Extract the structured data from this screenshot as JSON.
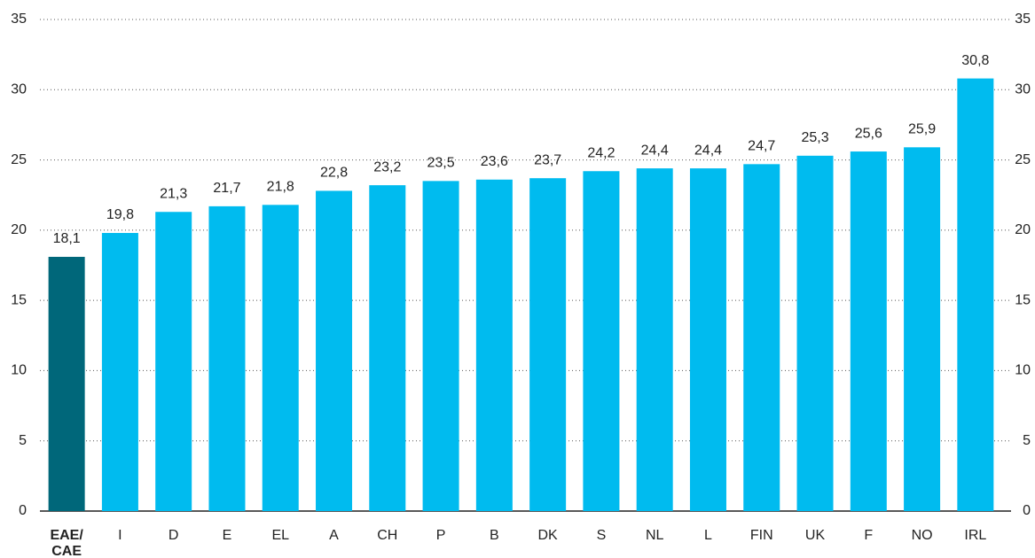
{
  "chart_data": {
    "type": "bar",
    "categories": [
      "EAE/ CAE",
      "I",
      "D",
      "E",
      "EL",
      "A",
      "CH",
      "P",
      "B",
      "DK",
      "S",
      "NL",
      "L",
      "FIN",
      "UK",
      "F",
      "NO",
      "IRL"
    ],
    "values": [
      18.1,
      19.8,
      21.3,
      21.7,
      21.8,
      22.8,
      23.2,
      23.5,
      23.6,
      23.7,
      24.2,
      24.4,
      24.4,
      24.7,
      25.3,
      25.6,
      25.9,
      30.8
    ],
    "value_labels": [
      "18,1",
      "19,8",
      "21,3",
      "21,7",
      "21,8",
      "22,8",
      "23,2",
      "23,5",
      "23,6",
      "23,7",
      "24,2",
      "24,4",
      "24,4",
      "24,7",
      "25,3",
      "25,6",
      "25,9",
      "30,8"
    ],
    "colors": [
      "#00677a",
      "#00bbef",
      "#00bbef",
      "#00bbef",
      "#00bbef",
      "#00bbef",
      "#00bbef",
      "#00bbef",
      "#00bbef",
      "#00bbef",
      "#00bbef",
      "#00bbef",
      "#00bbef",
      "#00bbef",
      "#00bbef",
      "#00bbef",
      "#00bbef",
      "#00bbef"
    ],
    "ylim": [
      0,
      35
    ],
    "yticks": [
      0,
      5,
      10,
      15,
      20,
      25,
      30,
      35
    ],
    "grid": true
  }
}
